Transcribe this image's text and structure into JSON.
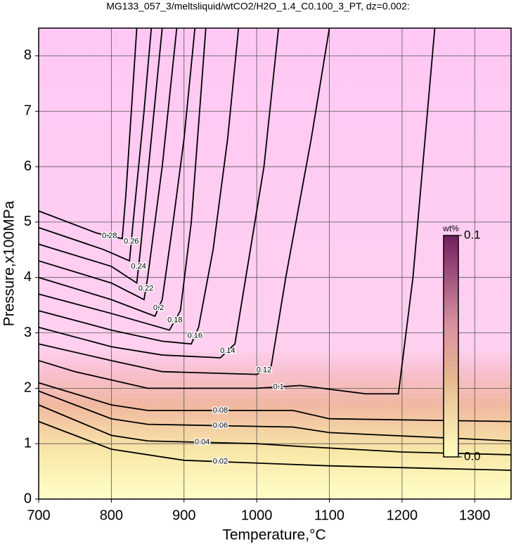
{
  "chart_data": {
    "type": "contour",
    "title": "MG133_057_3/meltsliquid/wtCO2/H2O_1.4_C0.100_3_PT, dz=0.002:",
    "xlabel": "Temperature,°C",
    "ylabel": "Pressure,x100MPa",
    "xlim": [
      700,
      1350
    ],
    "ylim": [
      0,
      8.5
    ],
    "xticks": [
      700,
      800,
      900,
      1000,
      1100,
      1200,
      1300
    ],
    "yticks": [
      0,
      1,
      2,
      3,
      4,
      5,
      6,
      7,
      8
    ],
    "grid": true,
    "colorbar": {
      "label": "wt%",
      "lim": [
        0,
        0.1
      ],
      "ticks": [
        {
          "value": 0,
          "label": "0.0"
        },
        0.1
      ]
    },
    "contours": [
      {
        "level": 0.02,
        "x": [
          700,
          800,
          900,
          1000,
          1100,
          1350
        ],
        "y": [
          1.4,
          0.9,
          0.7,
          0.65,
          0.6,
          0.52
        ]
      },
      {
        "level": 0.04,
        "x": [
          700,
          800,
          850,
          1000,
          1060,
          1200,
          1350
        ],
        "y": [
          1.7,
          1.15,
          1.05,
          1.0,
          0.95,
          0.85,
          0.8
        ]
      },
      {
        "level": 0.06,
        "x": [
          700,
          800,
          850,
          1050,
          1100,
          1350
        ],
        "y": [
          1.95,
          1.45,
          1.35,
          1.3,
          1.2,
          1.05
        ]
      },
      {
        "level": 0.08,
        "x": [
          700,
          800,
          850,
          1050,
          1100,
          1350
        ],
        "y": [
          2.1,
          1.7,
          1.6,
          1.6,
          1.45,
          1.4
        ]
      },
      {
        "level": 0.1,
        "x": [
          700,
          750,
          850,
          1000,
          1060,
          1150,
          1195,
          1215,
          1245
        ],
        "y": [
          2.5,
          2.3,
          2.0,
          2.0,
          2.05,
          1.9,
          1.9,
          4.0,
          8.5
        ]
      },
      {
        "level": 0.12,
        "x": [
          700,
          800,
          870,
          1000,
          1020,
          1040,
          1075,
          1100
        ],
        "y": [
          2.8,
          2.5,
          2.3,
          2.25,
          2.4,
          4.0,
          6.5,
          8.5
        ]
      },
      {
        "level": 0.14,
        "x": [
          700,
          800,
          870,
          950,
          970,
          985,
          1010,
          1030
        ],
        "y": [
          3.1,
          2.75,
          2.6,
          2.55,
          2.8,
          4.0,
          6.0,
          8.5
        ]
      },
      {
        "level": 0.16,
        "x": [
          700,
          800,
          870,
          910,
          920,
          940,
          960,
          975
        ],
        "y": [
          3.4,
          3.05,
          2.85,
          2.8,
          3.1,
          4.5,
          6.5,
          8.5
        ]
      },
      {
        "level": 0.18,
        "x": [
          700,
          800,
          880,
          895,
          910,
          930
        ],
        "y": [
          3.7,
          3.35,
          3.05,
          3.4,
          5.0,
          8.5
        ]
      },
      {
        "level": 0.2,
        "x": [
          700,
          800,
          860,
          870,
          885,
          900,
          915
        ],
        "y": [
          4.0,
          3.6,
          3.3,
          3.6,
          5.0,
          6.5,
          8.5
        ]
      },
      {
        "level": 0.22,
        "x": [
          700,
          800,
          845,
          850,
          870,
          890
        ],
        "y": [
          4.3,
          3.9,
          3.6,
          4.0,
          6.0,
          8.5
        ]
      },
      {
        "level": 0.24,
        "x": [
          700,
          800,
          835,
          840,
          855,
          870
        ],
        "y": [
          4.6,
          4.2,
          3.9,
          4.5,
          6.5,
          8.5
        ]
      },
      {
        "level": 0.26,
        "x": [
          700,
          790,
          825,
          830,
          845,
          855
        ],
        "y": [
          4.9,
          4.5,
          4.3,
          5.0,
          7.0,
          8.5
        ]
      },
      {
        "level": 0.28,
        "x": [
          700,
          780,
          815,
          820,
          835
        ],
        "y": [
          5.2,
          4.8,
          4.7,
          5.5,
          8.5
        ]
      }
    ]
  }
}
